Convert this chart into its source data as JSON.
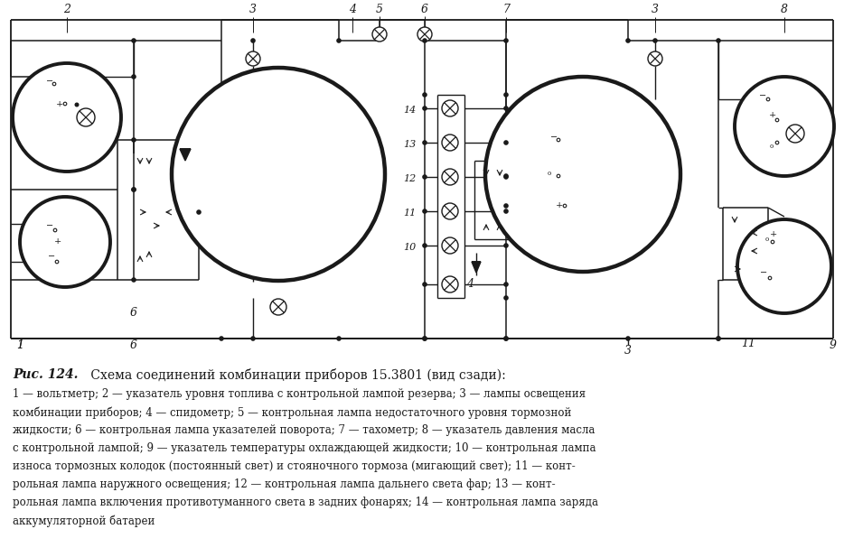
{
  "bg_color": "#ffffff",
  "line_color": "#1a1a1a",
  "caption_italic": "Рис. 124.",
  "caption_normal": " Схема соединений комбинации приборов 15.3801 (вид сзади):",
  "legend_lines": [
    "1 — вольтметр; 2 — указатель уровня топлива с контрольной лампой резерва; 3 — лампы освещения",
    "комбинации приборов; 4 — спидометр; 5 — контрольная лампа недостаточного уровня тормозной",
    "жидкости; 6 — контрольная лампа указателей поворота; 7 — тахометр; 8 — указатель давления масла",
    "с контрольной лампой; 9 — указатель температуры охлаждающей жидкости; 10 — контрольная лампа",
    "износа тормозных колодок (постоянный свет) и стояночного тормоза (мигающий свет); 11 — конт-",
    "рольная лампа наружного освещения; 12 — контрольная лампа дальнего света фар; 13 — конт-",
    "рольная лампа включения противотуманного света в задних фонарях; 14 — контрольная лампа заряда",
    "аккумуляторной батареи"
  ]
}
